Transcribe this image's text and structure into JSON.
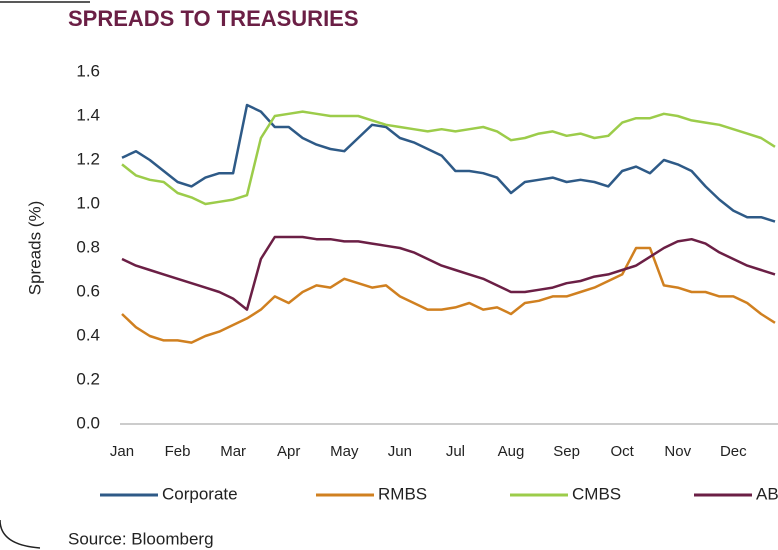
{
  "chart_data": {
    "type": "line",
    "title": "SPREADS TO TREASURIES",
    "ylabel": "Spreads (%)",
    "source": "Source: Bloomberg",
    "categories": [
      "Jan",
      null,
      null,
      null,
      "Feb",
      null,
      null,
      null,
      "Mar",
      null,
      null,
      null,
      "Apr",
      null,
      null,
      null,
      "May",
      null,
      null,
      null,
      "Jun",
      null,
      null,
      null,
      "Jul",
      null,
      null,
      null,
      "Aug",
      null,
      null,
      null,
      "Sep",
      null,
      null,
      null,
      "Oct",
      null,
      null,
      null,
      "Nov",
      null,
      null,
      null,
      "Dec",
      null,
      null,
      null
    ],
    "series": [
      {
        "name": "Corporate",
        "color": "#2e5a87",
        "values": [
          1.21,
          1.24,
          1.2,
          1.15,
          1.1,
          1.08,
          1.12,
          1.14,
          1.14,
          1.45,
          1.42,
          1.35,
          1.35,
          1.3,
          1.27,
          1.25,
          1.24,
          1.3,
          1.36,
          1.35,
          1.3,
          1.28,
          1.25,
          1.22,
          1.15,
          1.15,
          1.14,
          1.12,
          1.05,
          1.1,
          1.11,
          1.12,
          1.1,
          1.11,
          1.1,
          1.08,
          1.15,
          1.17,
          1.14,
          1.2,
          1.18,
          1.15,
          1.08,
          1.02,
          0.97,
          0.94,
          0.94,
          0.92
        ]
      },
      {
        "name": "RMBS",
        "color": "#d08020",
        "values": [
          0.5,
          0.44,
          0.4,
          0.38,
          0.38,
          0.37,
          0.4,
          0.42,
          0.45,
          0.48,
          0.52,
          0.58,
          0.55,
          0.6,
          0.63,
          0.62,
          0.66,
          0.64,
          0.62,
          0.63,
          0.58,
          0.55,
          0.52,
          0.52,
          0.53,
          0.55,
          0.52,
          0.53,
          0.5,
          0.55,
          0.56,
          0.58,
          0.58,
          0.6,
          0.62,
          0.65,
          0.68,
          0.8,
          0.8,
          0.63,
          0.62,
          0.6,
          0.6,
          0.58,
          0.58,
          0.55,
          0.5,
          0.46
        ]
      },
      {
        "name": "CMBS",
        "color": "#9ccc4a",
        "values": [
          1.18,
          1.13,
          1.11,
          1.1,
          1.05,
          1.03,
          1.0,
          1.01,
          1.02,
          1.04,
          1.3,
          1.4,
          1.41,
          1.42,
          1.41,
          1.4,
          1.4,
          1.4,
          1.38,
          1.36,
          1.35,
          1.34,
          1.33,
          1.34,
          1.33,
          1.34,
          1.35,
          1.33,
          1.29,
          1.3,
          1.32,
          1.33,
          1.31,
          1.32,
          1.3,
          1.31,
          1.37,
          1.39,
          1.39,
          1.41,
          1.4,
          1.38,
          1.37,
          1.36,
          1.34,
          1.32,
          1.3,
          1.26
        ]
      },
      {
        "name": "ABS",
        "color": "#6b1f45",
        "values": [
          0.75,
          0.72,
          0.7,
          0.68,
          0.66,
          0.64,
          0.62,
          0.6,
          0.57,
          0.52,
          0.75,
          0.85,
          0.85,
          0.85,
          0.84,
          0.84,
          0.83,
          0.83,
          0.82,
          0.81,
          0.8,
          0.78,
          0.75,
          0.72,
          0.7,
          0.68,
          0.66,
          0.63,
          0.6,
          0.6,
          0.61,
          0.62,
          0.64,
          0.65,
          0.67,
          0.68,
          0.7,
          0.72,
          0.76,
          0.8,
          0.83,
          0.84,
          0.82,
          0.78,
          0.75,
          0.72,
          0.7,
          0.68
        ]
      }
    ],
    "ylim": [
      0,
      1.6
    ],
    "yticks": [
      {
        "value": 0,
        "label": "0.0"
      },
      0.2,
      0.4,
      0.6,
      0.8,
      {
        "value": 1,
        "label": "1.0"
      },
      1.2,
      1.4,
      1.6
    ],
    "grid": false
  }
}
